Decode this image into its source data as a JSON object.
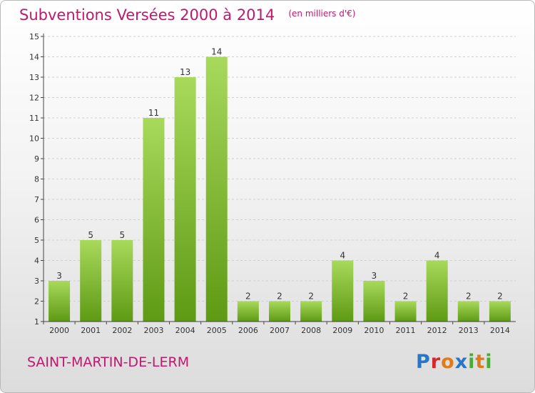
{
  "title": "Subventions Versées 2000 à 2014",
  "subtitle": "(en milliers d'€)",
  "commune": "SAINT-MARTIN-DE-LERM",
  "logo": {
    "letters": [
      "P",
      "r",
      "o",
      "x",
      "i",
      "t",
      "i"
    ],
    "colors": [
      "#2a76c6",
      "#d2282e",
      "#e07b1a",
      "#2a76c6",
      "#4caa36",
      "#e07b1a",
      "#4caa36"
    ]
  },
  "colors": {
    "bar_light": "#a8d95b",
    "bar_dark": "#5e9a14",
    "accent": "#c0186e",
    "axis": "#444444",
    "grid": "#d0d0d0"
  },
  "chart_data": {
    "type": "bar",
    "categories": [
      "2000",
      "2001",
      "2002",
      "2003",
      "2004",
      "2005",
      "2006",
      "2007",
      "2008",
      "2009",
      "2010",
      "2011",
      "2012",
      "2013",
      "2014"
    ],
    "values": [
      3,
      5,
      5,
      11,
      13,
      14,
      2,
      2,
      2,
      4,
      3,
      2,
      4,
      2,
      2
    ],
    "data_labels": [
      "3",
      "5",
      "5",
      "11",
      "13",
      "14",
      "2",
      "2",
      "2",
      "4",
      "3",
      "2",
      "4",
      "2",
      "2"
    ],
    "yticks": [
      "1",
      "2",
      "3",
      "4",
      "5",
      "6",
      "7",
      "8",
      "9",
      "10",
      "11",
      "12",
      "13",
      "14",
      "15"
    ],
    "ylim": [
      1,
      15
    ],
    "grid": true,
    "legend": false
  }
}
